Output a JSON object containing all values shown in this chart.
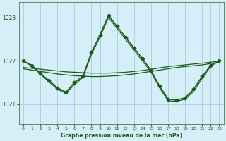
{
  "title": "Graphe pression niveau de la mer (hPa)",
  "bg_color": "#d6eef8",
  "grid_color": "#b0cfe0",
  "line_color": "#1a5c1a",
  "ylim": [
    1020.55,
    1023.35
  ],
  "yticks": [
    1021,
    1022,
    1023
  ],
  "xlim": [
    -0.5,
    23.5
  ],
  "xticks": [
    0,
    1,
    2,
    3,
    4,
    5,
    6,
    7,
    8,
    9,
    10,
    11,
    12,
    13,
    14,
    15,
    16,
    17,
    18,
    19,
    20,
    21,
    22,
    23
  ],
  "series": [
    {
      "x": [
        0,
        1,
        2,
        3,
        4,
        5,
        6,
        7,
        8,
        9,
        10,
        11,
        12,
        13,
        14,
        15,
        16,
        17,
        18,
        19,
        20,
        21,
        22,
        23
      ],
      "y": [
        1021.85,
        1021.83,
        1021.81,
        1021.79,
        1021.77,
        1021.75,
        1021.74,
        1021.73,
        1021.72,
        1021.72,
        1021.72,
        1021.73,
        1021.74,
        1021.76,
        1021.78,
        1021.81,
        1021.84,
        1021.87,
        1021.89,
        1021.91,
        1021.93,
        1021.95,
        1021.97,
        1022.0
      ],
      "marker": null,
      "linewidth": 0.9
    },
    {
      "x": [
        0,
        1,
        2,
        3,
        4,
        5,
        6,
        7,
        8,
        9,
        10,
        11,
        12,
        13,
        14,
        15,
        16,
        17,
        18,
        19,
        20,
        21,
        22,
        23
      ],
      "y": [
        1021.82,
        1021.79,
        1021.76,
        1021.73,
        1021.7,
        1021.68,
        1021.66,
        1021.65,
        1021.64,
        1021.64,
        1021.65,
        1021.66,
        1021.68,
        1021.7,
        1021.73,
        1021.76,
        1021.79,
        1021.82,
        1021.85,
        1021.87,
        1021.89,
        1021.91,
        1021.94,
        1021.97
      ],
      "marker": null,
      "linewidth": 0.9
    },
    {
      "x": [
        0,
        1,
        2,
        3,
        4,
        5,
        6,
        7,
        8,
        9,
        10,
        11,
        12,
        13,
        14,
        15,
        16,
        17,
        18,
        19,
        20,
        21,
        22,
        23
      ],
      "y": [
        1022.0,
        1021.9,
        1021.72,
        1021.55,
        1021.38,
        1021.28,
        1021.5,
        1021.65,
        1022.2,
        1022.6,
        1023.05,
        1022.8,
        1022.55,
        1022.3,
        1022.05,
        1021.78,
        1021.42,
        1021.12,
        1021.1,
        1021.15,
        1021.35,
        1021.65,
        1021.9,
        1022.0
      ],
      "marker": "D",
      "markersize": 2.5,
      "linewidth": 1.1
    },
    {
      "x": [
        0,
        1,
        2,
        3,
        4,
        5,
        6,
        7,
        8,
        9,
        10,
        11,
        12,
        13,
        14,
        15,
        16,
        17,
        18,
        19,
        20,
        21,
        22,
        23
      ],
      "y": [
        1022.0,
        1021.88,
        1021.7,
        1021.52,
        1021.35,
        1021.25,
        1021.45,
        1021.62,
        1022.15,
        1022.55,
        1023.0,
        1022.75,
        1022.5,
        1022.25,
        1022.0,
        1021.74,
        1021.38,
        1021.08,
        1021.07,
        1021.12,
        1021.3,
        1021.6,
        1021.88,
        1022.0
      ],
      "marker": null,
      "linewidth": 0.9
    }
  ]
}
